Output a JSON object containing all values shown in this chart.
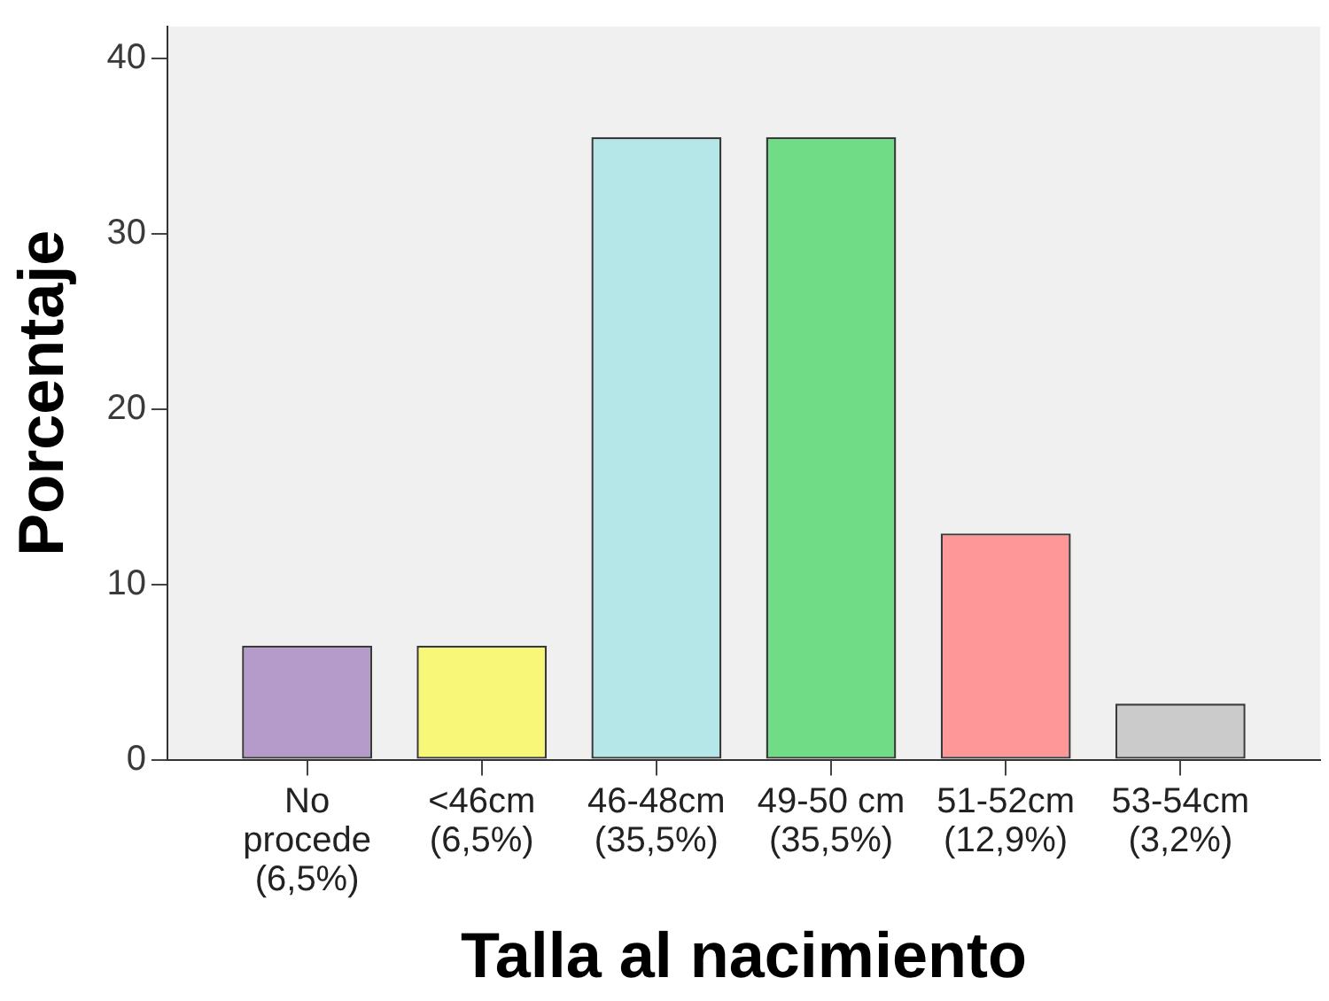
{
  "chart_data": {
    "type": "bar",
    "xlabel": "Talla al nacimiento",
    "ylabel": "Porcentaje",
    "categories": [
      "No procede (6,5%)",
      "<46cm (6,5%)",
      "46-48cm (35,5%)",
      "49-50 cm (35,5%)",
      "51-52cm (12,9%)",
      "53-54cm (3,2%)"
    ],
    "values": [
      6.5,
      6.5,
      35.5,
      35.5,
      12.9,
      3.2
    ],
    "colors": [
      "#b59bc9",
      "#f9f777",
      "#b5e6e8",
      "#70dd86",
      "#fe9797",
      "#cbcbcb"
    ],
    "ylim": [
      0,
      41.8
    ],
    "yticks": [
      0,
      10,
      20,
      30,
      40
    ]
  }
}
